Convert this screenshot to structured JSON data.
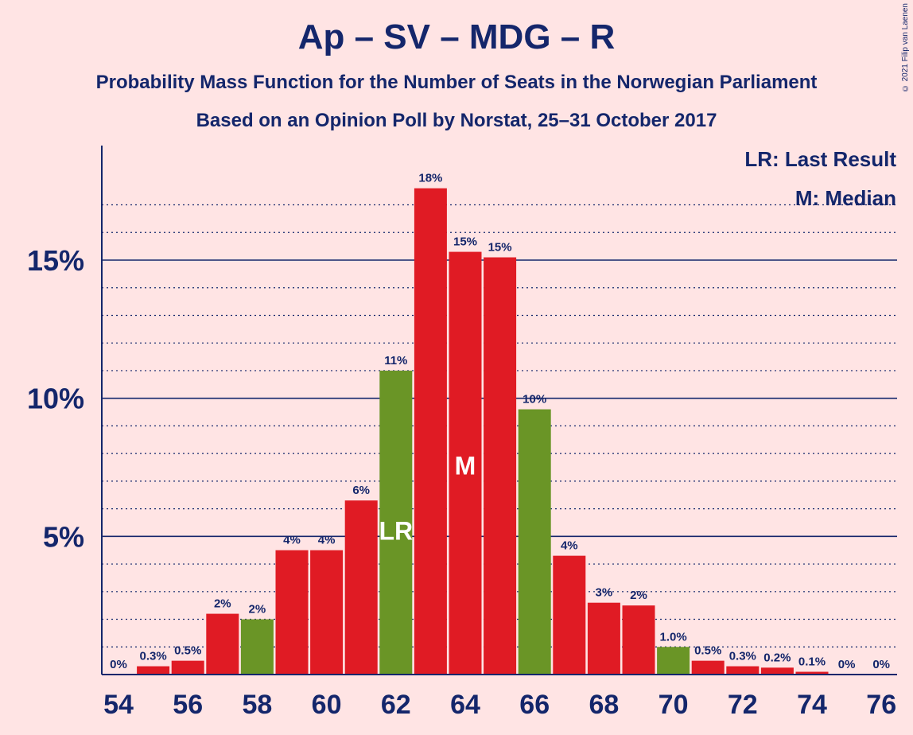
{
  "title": "Ap – SV – MDG – R",
  "subtitle": "Probability Mass Function for the Number of Seats in the Norwegian Parliament",
  "subtitle2": "Based on an Opinion Poll by Norstat, 25–31 October 2017",
  "copyright": "© 2021 Filip van Laenen",
  "legend": {
    "lr": "LR: Last Result",
    "m": "M: Median"
  },
  "colors": {
    "background": "#ffe4e4",
    "bar_red": "#e01b24",
    "bar_green": "#6a9526",
    "axis": "#14266b",
    "text": "#14266b"
  },
  "chart_data": {
    "type": "bar",
    "x": [
      54,
      55,
      56,
      57,
      58,
      59,
      60,
      61,
      62,
      63,
      64,
      65,
      66,
      67,
      68,
      69,
      70,
      71,
      72,
      73,
      74,
      75,
      76
    ],
    "values": [
      0,
      0.3,
      0.5,
      2.2,
      2.0,
      4.5,
      4.5,
      6.3,
      11.0,
      17.6,
      15.3,
      15.1,
      9.6,
      4.3,
      2.6,
      2.5,
      1.0,
      0.5,
      0.3,
      0.25,
      0.1,
      0,
      0
    ],
    "value_labels": [
      "0%",
      "0.3%",
      "0.5%",
      "2%",
      "2%",
      "4%",
      "4%",
      "6%",
      "11%",
      "18%",
      "15%",
      "15%",
      "10%",
      "4%",
      "3%",
      "2%",
      "1.0%",
      "0.5%",
      "0.3%",
      "0.2%",
      "0.1%",
      "0%",
      "0%"
    ],
    "highlighted": [
      58,
      62,
      66,
      70
    ],
    "x_ticks": [
      54,
      56,
      58,
      60,
      62,
      64,
      66,
      68,
      70,
      72,
      74,
      76
    ],
    "y_ticks": [
      5,
      10,
      15
    ],
    "y_tick_labels": [
      "5%",
      "10%",
      "15%"
    ],
    "ylim": [
      0,
      19
    ],
    "annotations": [
      {
        "x": 62,
        "text": "LR"
      },
      {
        "x": 64,
        "text": "M"
      }
    ]
  }
}
